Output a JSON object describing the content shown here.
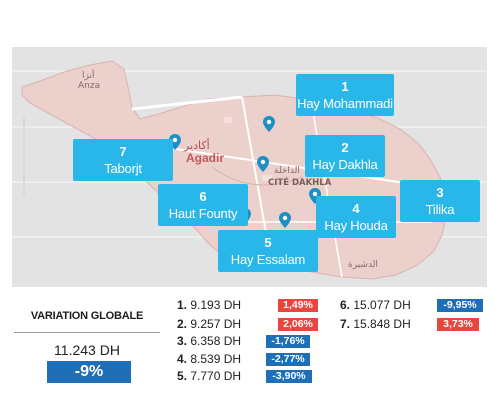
{
  "map": {
    "labels": {
      "anza_ar": "أنزا",
      "anza": "Anza",
      "agadir_ar": "أكادير",
      "agadir": "Agadir",
      "cite_dakhla": "CITÉ DAKHLA",
      "dakhla_ar": "الداخلة",
      "dcheira_ar": "الدشيرة"
    },
    "callouts": [
      {
        "num": "1",
        "name": "Hay Mohammadi"
      },
      {
        "num": "2",
        "name": "Hay Dakhla"
      },
      {
        "num": "3",
        "name": "Tilika"
      },
      {
        "num": "4",
        "name": "Hay Houda"
      },
      {
        "num": "5",
        "name": "Hay Essalam"
      },
      {
        "num": "6",
        "name": "Haut Founty"
      },
      {
        "num": "7",
        "name": "Taborjt"
      }
    ],
    "colors": {
      "callout": "#29b6e8",
      "land": "#e8c8c4",
      "pin": "#1d8fc7"
    }
  },
  "stats": {
    "title": "VARIATION GLOBALE",
    "amount": "11.243 DH",
    "variation": "-9%",
    "rows": [
      {
        "n": "1.",
        "price": "9.193 DH",
        "pct": "1,49%",
        "dir": "up"
      },
      {
        "n": "2.",
        "price": "9.257 DH",
        "pct": "2,06%",
        "dir": "up"
      },
      {
        "n": "3.",
        "price": "6.358 DH",
        "pct": "-1,76%",
        "dir": "down"
      },
      {
        "n": "4.",
        "price": "8.539 DH",
        "pct": "-2,77%",
        "dir": "down"
      },
      {
        "n": "5.",
        "price": "7.770 DH",
        "pct": "-3,90%",
        "dir": "down"
      },
      {
        "n": "6.",
        "price": "15.077 DH",
        "pct": "-9,95%",
        "dir": "down"
      },
      {
        "n": "7.",
        "price": "15.848 DH",
        "pct": "3,73%",
        "dir": "up"
      }
    ],
    "colors": {
      "up": "#e8463e",
      "down": "#1f6fb8"
    }
  }
}
